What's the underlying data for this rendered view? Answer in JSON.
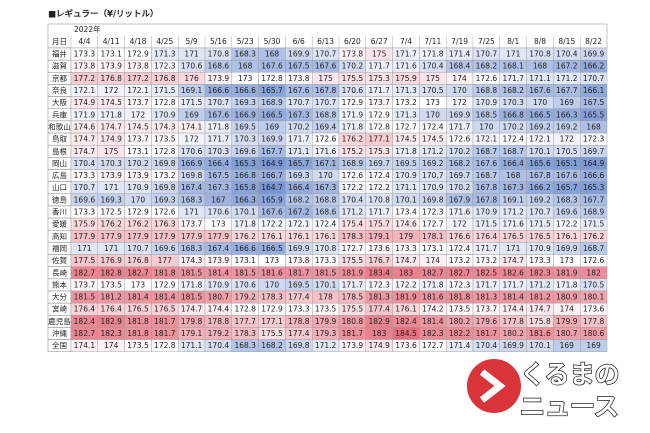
{
  "title": "■レギュラー（¥/リットル）",
  "year_label": "2022年",
  "corner_label": "月日",
  "columns": [
    "4/4",
    "4/11",
    "4/18",
    "4/25",
    "5/9",
    "5/16",
    "5/23",
    "5/30",
    "6/6",
    "6/13",
    "6/20",
    "6/27",
    "7/4",
    "7/11",
    "7/19",
    "7/25",
    "8/1",
    "8/8",
    "8/15",
    "8/22"
  ],
  "rows": [
    {
      "label": "福井",
      "values": [
        173.3,
        173.1,
        172.9,
        171.3,
        171.0,
        170.8,
        168.3,
        168.0,
        169.9,
        170.7,
        173.8,
        175.0,
        171.7,
        171.8,
        171.4,
        170.7,
        171.0,
        170.8,
        170.4,
        169.9
      ]
    },
    {
      "label": "滋賀",
      "values": [
        173.8,
        173.9,
        173.8,
        172.3,
        170.6,
        168.6,
        168.0,
        167.6,
        167.5,
        167.6,
        170.2,
        171.7,
        171.6,
        170.4,
        168.4,
        168.2,
        168.1,
        168.0,
        167.2,
        166.2
      ]
    },
    {
      "label": "京都",
      "values": [
        177.2,
        176.8,
        177.2,
        176.8,
        176.0,
        173.9,
        173.0,
        172.8,
        173.8,
        175.0,
        175.5,
        175.3,
        175.9,
        175.0,
        174.0,
        172.6,
        171.7,
        171.1,
        171.2,
        170.7
      ]
    },
    {
      "label": "奈良",
      "values": [
        172.1,
        172.0,
        172.1,
        171.5,
        169.1,
        166.6,
        166.6,
        165.7,
        167.6,
        167.8,
        170.6,
        171.7,
        171.3,
        170.5,
        170.0,
        168.8,
        168.2,
        167.6,
        167.7,
        166.1
      ]
    },
    {
      "label": "大阪",
      "values": [
        174.9,
        174.5,
        173.7,
        172.8,
        171.5,
        170.7,
        169.3,
        168.9,
        170.7,
        170.7,
        172.9,
        173.7,
        173.2,
        173.0,
        172.0,
        170.9,
        170.3,
        170.0,
        169.0,
        167.5
      ]
    },
    {
      "label": "兵庫",
      "values": [
        171.9,
        171.8,
        172.0,
        170.9,
        169.0,
        167.6,
        166.9,
        166.5,
        167.3,
        168.8,
        171.9,
        172.9,
        171.3,
        170.0,
        169.9,
        168.5,
        166.8,
        166.5,
        166.3,
        165.5
      ]
    },
    {
      "label": "和歌山",
      "values": [
        174.6,
        174.7,
        174.5,
        174.3,
        174.1,
        171.8,
        169.5,
        169.0,
        170.2,
        169.4,
        171.8,
        172.8,
        172.7,
        172.4,
        171.7,
        170.0,
        170.2,
        169.2,
        169.2,
        168.0
      ]
    },
    {
      "label": "鳥取",
      "values": [
        174.7,
        174.9,
        173.7,
        173.5,
        172.0,
        171.7,
        170.3,
        169.9,
        171.7,
        172.6,
        176.2,
        177.1,
        174.5,
        174.5,
        172.6,
        172.1,
        172.4,
        172.1,
        172.0,
        172.3
      ]
    },
    {
      "label": "島根",
      "values": [
        174.7,
        175.0,
        173.1,
        172.8,
        170.6,
        170.3,
        169.6,
        167.7,
        171.1,
        171.6,
        175.2,
        175.3,
        171.8,
        171.2,
        170.2,
        168.7,
        168.7,
        170.1,
        170.5,
        169.7
      ]
    },
    {
      "label": "岡山",
      "values": [
        170.4,
        170.3,
        170.2,
        169.8,
        166.9,
        166.4,
        165.3,
        164.9,
        165.7,
        167.1,
        168.9,
        169.7,
        169.5,
        169.2,
        168.2,
        167.6,
        166.4,
        165.6,
        165.1,
        164.9
      ]
    },
    {
      "label": "広島",
      "values": [
        173.3,
        173.9,
        173.9,
        173.2,
        169.8,
        167.5,
        166.8,
        166.7,
        169.3,
        170.0,
        172.6,
        172.4,
        170.9,
        170.7,
        169.7,
        168.7,
        168.0,
        167.8,
        167.6,
        166.6
      ]
    },
    {
      "label": "山口",
      "values": [
        170.7,
        171.0,
        170.9,
        169.8,
        167.4,
        167.3,
        165.8,
        164.7,
        166.4,
        167.3,
        172.2,
        172.2,
        171.1,
        170.9,
        170.2,
        167.8,
        167.3,
        166.2,
        165.7,
        165.3
      ]
    },
    {
      "label": "徳島",
      "values": [
        169.6,
        169.3,
        170.0,
        169.3,
        168.3,
        167.0,
        166.3,
        165.9,
        168.2,
        168.8,
        170.4,
        170.8,
        170.1,
        169.8,
        167.9,
        167.8,
        169.1,
        169.2,
        168.3,
        167.7
      ]
    },
    {
      "label": "香川",
      "values": [
        173.3,
        172.5,
        172.9,
        172.6,
        171.0,
        170.6,
        170.1,
        167.6,
        167.2,
        168.6,
        171.2,
        171.7,
        173.4,
        172.3,
        171.6,
        170.9,
        171.2,
        170.7,
        169.6,
        168.9
      ]
    },
    {
      "label": "愛媛",
      "values": [
        175.9,
        176.2,
        176.2,
        176.3,
        173.7,
        173.0,
        171.8,
        172.2,
        172.1,
        172.4,
        175.4,
        175.7,
        174.6,
        172.7,
        172.0,
        171.5,
        171.6,
        171.5,
        172.2,
        171.5
      ]
    },
    {
      "label": "高知",
      "values": [
        177.9,
        177.9,
        177.9,
        177.9,
        177.9,
        177.9,
        176.2,
        176.1,
        176.1,
        176.1,
        178.3,
        179.1,
        179.0,
        178.1,
        176.6,
        176.4,
        176.5,
        176.5,
        176.1,
        176.2
      ]
    },
    {
      "label": "福岡",
      "values": [
        171.0,
        171.0,
        170.7,
        169.6,
        168.3,
        167.4,
        166.6,
        166.5,
        169.9,
        170.8,
        172.7,
        173.6,
        173.3,
        173.1,
        172.4,
        171.7,
        171.0,
        170.9,
        169.9,
        168.7
      ]
    },
    {
      "label": "佐賀",
      "values": [
        177.5,
        176.9,
        176.8,
        177.0,
        174.3,
        173.9,
        173.1,
        173.0,
        173.8,
        173.3,
        175.5,
        176.7,
        174.7,
        174.0,
        173.2,
        173.2,
        174.7,
        173.3,
        173.0,
        172.6
      ]
    },
    {
      "label": "長崎",
      "values": [
        182.7,
        182.8,
        182.7,
        181.8,
        181.5,
        181.4,
        181.5,
        181.6,
        181.7,
        181.5,
        181.9,
        183.4,
        183.0,
        182.7,
        182.7,
        182.5,
        182.6,
        182.3,
        181.9,
        182.0
      ]
    },
    {
      "label": "熊本",
      "values": [
        173.7,
        173.5,
        173.0,
        172.9,
        171.8,
        170.9,
        170.6,
        170.0,
        169.5,
        170.1,
        171.7,
        172.3,
        172.2,
        171.8,
        172.3,
        171.7,
        171.7,
        171.2,
        171.8,
        170.5
      ]
    },
    {
      "label": "大分",
      "values": [
        181.5,
        181.2,
        181.4,
        181.4,
        181.5,
        180.7,
        179.2,
        178.3,
        177.4,
        178.0,
        178.5,
        181.3,
        181.9,
        181.6,
        181.8,
        181.3,
        181.4,
        181.2,
        180.9,
        180.1
      ]
    },
    {
      "label": "宮崎",
      "values": [
        176.4,
        176.4,
        176.5,
        176.5,
        174.7,
        174.4,
        172.8,
        172.9,
        173.3,
        173.5,
        175.5,
        177.4,
        176.1,
        174.2,
        173.5,
        173.7,
        174.4,
        174.7,
        174.0,
        173.6
      ]
    },
    {
      "label": "鹿児島",
      "values": [
        182.4,
        182.9,
        181.8,
        181.7,
        179.8,
        178.8,
        177.7,
        177.1,
        178.8,
        179.9,
        180.8,
        182.9,
        182.4,
        181.4,
        180.2,
        179.6,
        177.8,
        175.8,
        179.9,
        177.8
      ]
    },
    {
      "label": "沖縄",
      "values": [
        182.7,
        182.3,
        181.8,
        181.7,
        179.1,
        179.2,
        178.3,
        175.5,
        177.4,
        179.3,
        181.7,
        183.0,
        184.5,
        182.3,
        182.2,
        181.7,
        180.2,
        181.6,
        180.7,
        180.6
      ]
    },
    {
      "label": "全国",
      "values": [
        174.1,
        174.0,
        173.5,
        172.8,
        171.1,
        170.4,
        168.3,
        168.2,
        169.8,
        171.2,
        173.9,
        174.9,
        173.6,
        172.7,
        171.4,
        170.4,
        169.9,
        170.1,
        169.0,
        169.0
      ]
    }
  ],
  "watermark": [
    "くるまの",
    "ニュース"
  ]
}
